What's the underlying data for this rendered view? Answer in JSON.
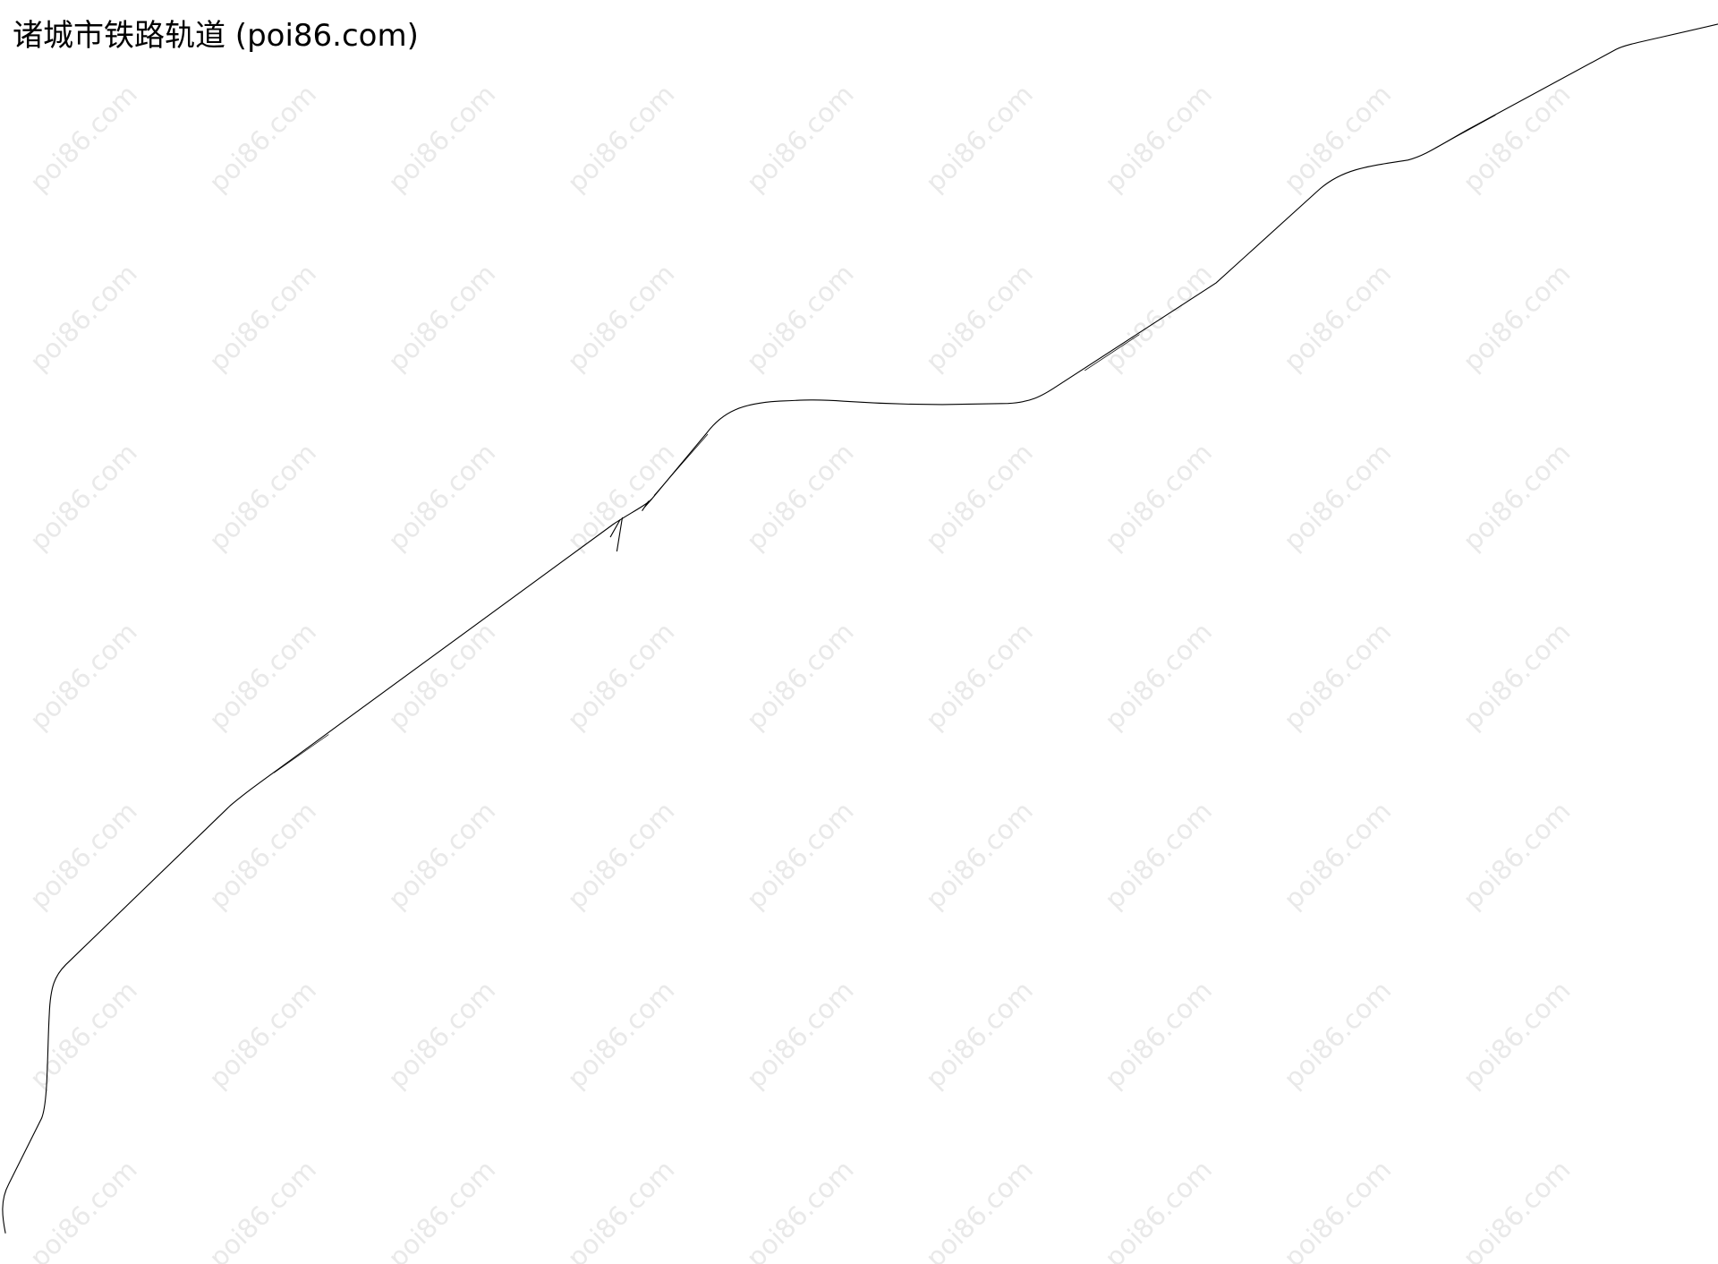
{
  "title": "诸城市铁路轨道 (poi86.com)",
  "watermark": "poi86.com",
  "colors": {
    "background": "#ffffff",
    "rail_line": "#000000",
    "watermark": "#e9e9e9"
  },
  "map": {
    "features": [
      {
        "type": "railway-track",
        "name": ""
      }
    ]
  }
}
